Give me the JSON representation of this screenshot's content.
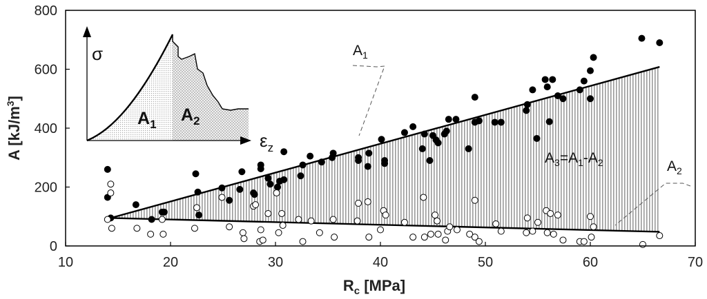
{
  "chart_data": {
    "type": "scatter",
    "xlabel": {
      "main": "R",
      "sub": "c",
      "unit": " [MPa]"
    },
    "ylabel": {
      "main": "A [kJ/m",
      "sup": "3",
      "end": "]"
    },
    "xlim": [
      10,
      70
    ],
    "ylim": [
      0,
      800
    ],
    "xticks": [
      "10",
      "20",
      "30",
      "40",
      "50",
      "60",
      "70"
    ],
    "yticks": [
      "0",
      "200",
      "400",
      "600",
      "800"
    ],
    "grid": false,
    "series": [
      {
        "marker": "filled-circle",
        "points": [
          [
            14,
            260
          ],
          [
            14,
            165
          ],
          [
            14.3,
            95
          ],
          [
            16.7,
            140
          ],
          [
            18.2,
            90
          ],
          [
            19.2,
            115
          ],
          [
            19.4,
            115
          ],
          [
            22.6,
            183
          ],
          [
            22.4,
            245
          ],
          [
            22.7,
            105
          ],
          [
            24.9,
            197
          ],
          [
            25.6,
            155
          ],
          [
            26.6,
            192
          ],
          [
            26.8,
            252
          ],
          [
            27.9,
            180
          ],
          [
            28.0,
            175
          ],
          [
            28.6,
            275
          ],
          [
            28.6,
            262
          ],
          [
            29.3,
            230
          ],
          [
            29.5,
            210
          ],
          [
            30.2,
            200
          ],
          [
            30.4,
            220
          ],
          [
            30.8,
            225
          ],
          [
            30.8,
            320
          ],
          [
            32.4,
            238
          ],
          [
            32.6,
            275
          ],
          [
            33.3,
            305
          ],
          [
            34.4,
            285
          ],
          [
            35.5,
            315
          ],
          [
            35.4,
            300
          ],
          [
            37.9,
            290
          ],
          [
            37.9,
            300
          ],
          [
            38.8,
            270
          ],
          [
            38.9,
            315
          ],
          [
            40.1,
            362
          ],
          [
            40.4,
            290
          ],
          [
            40.4,
            280
          ],
          [
            42.3,
            385
          ],
          [
            43.1,
            405
          ],
          [
            44.0,
            330
          ],
          [
            44.2,
            380
          ],
          [
            44.7,
            290
          ],
          [
            45.0,
            375
          ],
          [
            45.3,
            360
          ],
          [
            45.5,
            350
          ],
          [
            46.1,
            380
          ],
          [
            46.3,
            390
          ],
          [
            46.5,
            430
          ],
          [
            47.2,
            430
          ],
          [
            48.4,
            330
          ],
          [
            49.0,
            505
          ],
          [
            49.0,
            420
          ],
          [
            49.4,
            425
          ],
          [
            50.9,
            420
          ],
          [
            51.5,
            420
          ],
          [
            53.9,
            460
          ],
          [
            54.0,
            480
          ],
          [
            54.5,
            530
          ],
          [
            54.9,
            365
          ],
          [
            55.7,
            565
          ],
          [
            55.9,
            540
          ],
          [
            56.1,
            422
          ],
          [
            56.4,
            565
          ],
          [
            56.9,
            510
          ],
          [
            57.4,
            500
          ],
          [
            59.0,
            530
          ],
          [
            59.4,
            560
          ],
          [
            60.0,
            595
          ],
          [
            60.0,
            500
          ],
          [
            60.3,
            640
          ],
          [
            64.9,
            705
          ],
          [
            66.6,
            690
          ]
        ]
      },
      {
        "marker": "open-circle",
        "points": [
          [
            14.3,
            210
          ],
          [
            14.3,
            180
          ],
          [
            14.0,
            90
          ],
          [
            14.4,
            60
          ],
          [
            16.8,
            60
          ],
          [
            18.1,
            40
          ],
          [
            19.3,
            40
          ],
          [
            19.2,
            90
          ],
          [
            22.5,
            130
          ],
          [
            22.3,
            60
          ],
          [
            24.9,
            165
          ],
          [
            25.6,
            65
          ],
          [
            26.9,
            45
          ],
          [
            27.0,
            25
          ],
          [
            27.9,
            135
          ],
          [
            28.1,
            140
          ],
          [
            28.5,
            15
          ],
          [
            28.8,
            20
          ],
          [
            28.6,
            55
          ],
          [
            29.3,
            110
          ],
          [
            30.1,
            180
          ],
          [
            30.3,
            45
          ],
          [
            30.7,
            70
          ],
          [
            30.6,
            110
          ],
          [
            32.2,
            90
          ],
          [
            32.6,
            15
          ],
          [
            33.4,
            85
          ],
          [
            34.2,
            45
          ],
          [
            35.5,
            90
          ],
          [
            35.6,
            30
          ],
          [
            37.8,
            85
          ],
          [
            37.9,
            145
          ],
          [
            38.8,
            150
          ],
          [
            38.9,
            30
          ],
          [
            40.0,
            55
          ],
          [
            40.3,
            120
          ],
          [
            40.5,
            105
          ],
          [
            42.3,
            80
          ],
          [
            43.1,
            30
          ],
          [
            44.1,
            165
          ],
          [
            44.2,
            30
          ],
          [
            44.8,
            40
          ],
          [
            45.2,
            105
          ],
          [
            45.4,
            85
          ],
          [
            45.5,
            40
          ],
          [
            46.2,
            20
          ],
          [
            46.4,
            50
          ],
          [
            46.6,
            65
          ],
          [
            47.3,
            55
          ],
          [
            48.5,
            40
          ],
          [
            49.0,
            155
          ],
          [
            49.0,
            30
          ],
          [
            49.4,
            15
          ],
          [
            51.0,
            75
          ],
          [
            51.5,
            50
          ],
          [
            53.9,
            45
          ],
          [
            54.0,
            95
          ],
          [
            54.5,
            50
          ],
          [
            55.0,
            80
          ],
          [
            55.8,
            120
          ],
          [
            55.9,
            45
          ],
          [
            56.2,
            110
          ],
          [
            56.5,
            40
          ],
          [
            56.9,
            105
          ],
          [
            57.4,
            20
          ],
          [
            59.0,
            15
          ],
          [
            59.4,
            15
          ],
          [
            60.0,
            100
          ],
          [
            60.1,
            30
          ],
          [
            60.3,
            65
          ],
          [
            65.0,
            5
          ],
          [
            66.6,
            35
          ]
        ]
      }
    ],
    "fit_lines": [
      {
        "from": [
          14.3,
          95
        ],
        "to": [
          66.6,
          608
        ]
      },
      {
        "from": [
          14.3,
          95
        ],
        "to": [
          66.6,
          48
        ]
      }
    ],
    "annotations": {
      "a3_label": {
        "main": "A",
        "sub": "3",
        "eq": "=A",
        "sub1": "1",
        "minus": "-A",
        "sub2": "2"
      },
      "a1_callout": {
        "main": "A",
        "sub": "1"
      },
      "a2_callout": {
        "main": "A",
        "sub": "2"
      }
    },
    "inset": {
      "y_axis_label": "σ",
      "x_axis_label": {
        "main": "ε",
        "sub": "z"
      },
      "area1_label": {
        "main": "A",
        "sub": "1"
      },
      "area2_label": {
        "main": "A",
        "sub": "2"
      }
    }
  }
}
